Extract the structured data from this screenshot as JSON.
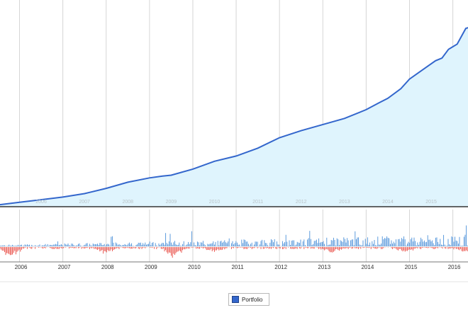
{
  "colors": {
    "line": "#3366cc",
    "area": "#dff4fd",
    "positive": "#4a90d9",
    "negative": "#e8473f",
    "grid": "#d6d6d6",
    "frame": "#555555"
  },
  "legend": {
    "label": "Portfolio"
  },
  "chart_data": [
    {
      "type": "area",
      "title": "",
      "series": [
        {
          "name": "Portfolio",
          "x": [
            2005.0,
            2005.5,
            2006.0,
            2006.5,
            2007.0,
            2007.5,
            2008.0,
            2008.5,
            2009.0,
            2009.3,
            2009.5,
            2010.0,
            2010.5,
            2011.0,
            2011.5,
            2012.0,
            2012.5,
            2013.0,
            2013.5,
            2014.0,
            2014.3,
            2014.5,
            2014.8,
            2015.0,
            2015.2,
            2015.4,
            2015.6,
            2015.75,
            2015.9,
            2016.1,
            2016.3,
            2016.5
          ],
          "y": [
            0.0,
            2.0,
            5.0,
            8.0,
            11.0,
            15.0,
            21.0,
            28.0,
            33.0,
            35.0,
            36.0,
            43.0,
            52.0,
            58.0,
            67.0,
            79.0,
            87.0,
            94.0,
            101.0,
            111.0,
            119.0,
            124.0,
            135.0,
            146.0,
            153.0,
            160.0,
            167.0,
            170.0,
            180.0,
            186.0,
            204.0,
            207.0
          ]
        }
      ],
      "x_tick_labels": [
        "2006",
        "2007",
        "2008",
        "2009",
        "2010",
        "2011",
        "2012",
        "2013",
        "2014",
        "2015"
      ],
      "xlim": [
        2005.55,
        2016.35
      ],
      "ylim": [
        0,
        230
      ],
      "grid": true,
      "legend_position": "bottom"
    },
    {
      "type": "bar",
      "title": "",
      "series": [
        {
          "name": "positive",
          "description": "daily gains, magnitude rising over time"
        },
        {
          "name": "negative",
          "description": "daily losses, clusters near 2006, 2008, 2009.5"
        }
      ],
      "x_tick_labels": [
        "2006",
        "2007",
        "2008",
        "2009",
        "2010",
        "2011",
        "2012",
        "2013",
        "2014",
        "2015",
        "2016"
      ],
      "xlim": [
        2005.55,
        2016.35
      ],
      "grid": true
    }
  ]
}
